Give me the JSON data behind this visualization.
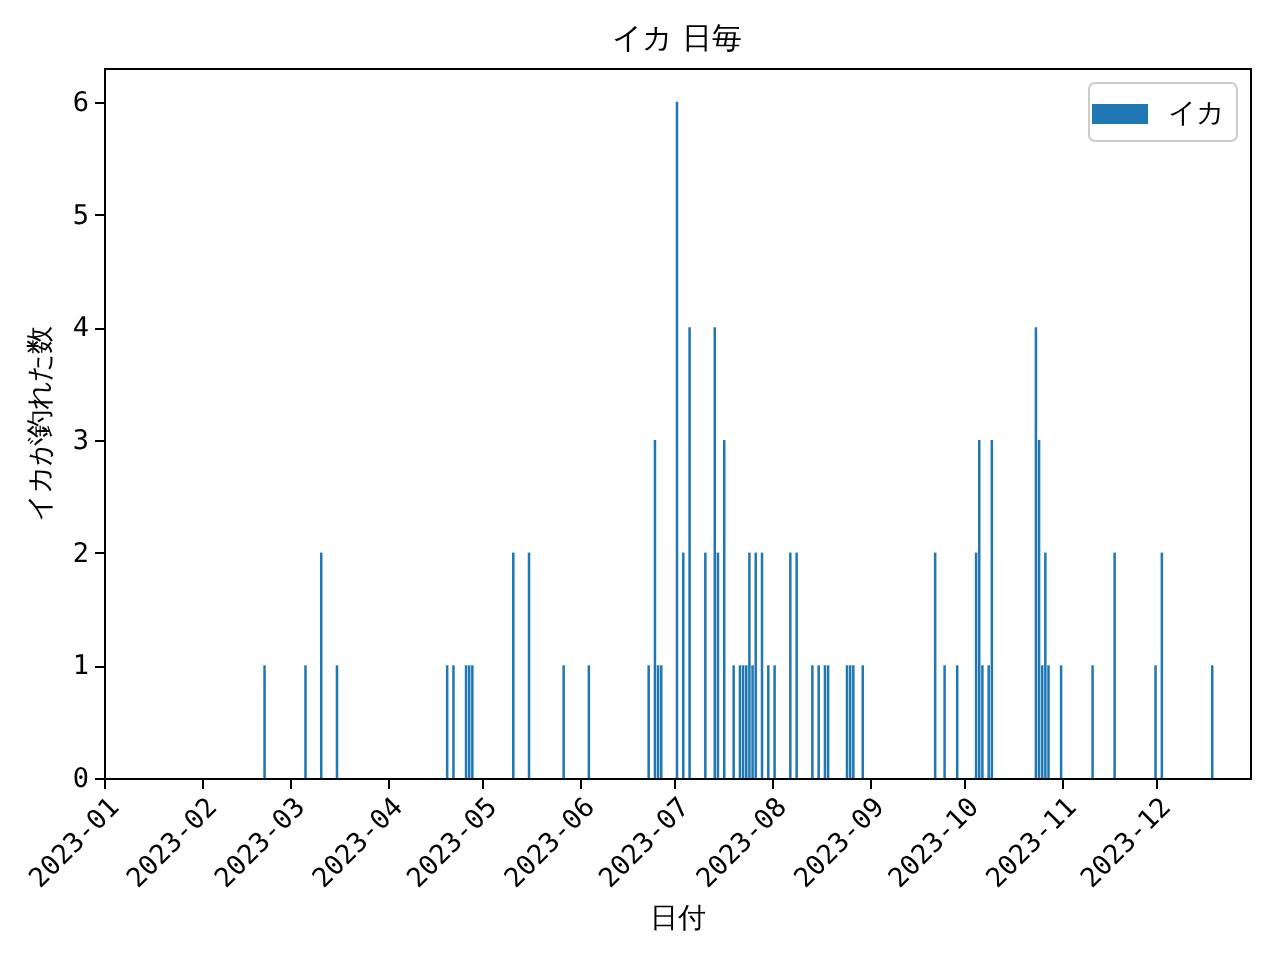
{
  "chart_data": {
    "type": "bar",
    "title": "イカ 日毎",
    "xlabel": "日付",
    "ylabel": "イカが釣れた数",
    "x": [
      "2023-02-21",
      "2023-03-06",
      "2023-03-11",
      "2023-03-16",
      "2023-04-20",
      "2023-04-22",
      "2023-04-26",
      "2023-04-27",
      "2023-04-28",
      "2023-05-11",
      "2023-05-16",
      "2023-05-27",
      "2023-06-04",
      "2023-06-23",
      "2023-06-25",
      "2023-06-26",
      "2023-06-27",
      "2023-07-02",
      "2023-07-04",
      "2023-07-06",
      "2023-07-11",
      "2023-07-14",
      "2023-07-15",
      "2023-07-17",
      "2023-07-20",
      "2023-07-22",
      "2023-07-23",
      "2023-07-24",
      "2023-07-25",
      "2023-07-26",
      "2023-07-27",
      "2023-07-29",
      "2023-07-31",
      "2023-08-02",
      "2023-08-07",
      "2023-08-09",
      "2023-08-14",
      "2023-08-16",
      "2023-08-18",
      "2023-08-19",
      "2023-08-25",
      "2023-08-26",
      "2023-08-27",
      "2023-08-30",
      "2023-09-22",
      "2023-09-25",
      "2023-09-29",
      "2023-10-05",
      "2023-10-06",
      "2023-10-07",
      "2023-10-09",
      "2023-10-10",
      "2023-10-24",
      "2023-10-25",
      "2023-10-26",
      "2023-10-27",
      "2023-10-28",
      "2023-11-01",
      "2023-11-11",
      "2023-11-18",
      "2023-12-01",
      "2023-12-03",
      "2023-12-19"
    ],
    "series": [
      {
        "name": "イカ",
        "color": "#1f77b4",
        "values": [
          1,
          1,
          2,
          1,
          1,
          1,
          1,
          1,
          1,
          2,
          2,
          1,
          1,
          1,
          3,
          1,
          1,
          6,
          2,
          4,
          2,
          4,
          2,
          3,
          1,
          1,
          1,
          1,
          2,
          1,
          2,
          2,
          1,
          1,
          2,
          2,
          1,
          1,
          1,
          1,
          1,
          1,
          1,
          1,
          2,
          1,
          1,
          2,
          3,
          1,
          1,
          3,
          4,
          3,
          1,
          2,
          1,
          1,
          1,
          2,
          1,
          2,
          1
        ]
      }
    ],
    "xlim": [
      "2023-01-01",
      "2023-12-31"
    ],
    "xticks": [
      "2023-01",
      "2023-02",
      "2023-03",
      "2023-04",
      "2023-05",
      "2023-06",
      "2023-07",
      "2023-08",
      "2023-09",
      "2023-10",
      "2023-11",
      "2023-12"
    ],
    "ylim": [
      0,
      6.3
    ],
    "yticks": [
      0,
      1,
      2,
      3,
      4,
      5,
      6
    ],
    "legend": "top right"
  }
}
